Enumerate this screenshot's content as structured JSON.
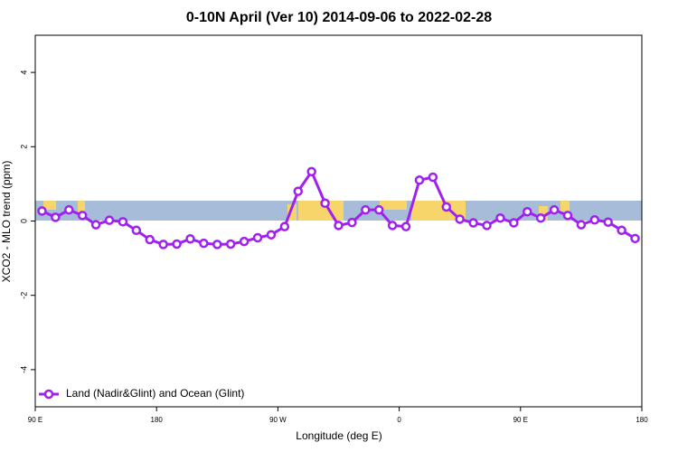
{
  "chart_data": {
    "type": "line",
    "title": "0-10N April (Ver 10)   2014-09-06 to 2022-02-28",
    "xlabel": "Longitude (deg E)",
    "ylabel": "XCO2 - MLO trend (ppm)",
    "xlim": [
      90,
      540
    ],
    "xticks": [
      {
        "value": 90,
        "label": "90 E"
      },
      180,
      {
        "value": 270,
        "label": "90 W"
      },
      {
        "value": 360,
        "label": "0"
      },
      {
        "value": 450,
        "label": "90 E"
      },
      {
        "value": 540,
        "label": "180"
      }
    ],
    "ylim": [
      -5,
      5
    ],
    "yticks": [
      -4,
      -2,
      0,
      2,
      4
    ],
    "legend": "bottom-left",
    "x": [
      95,
      105,
      115,
      125,
      135,
      145,
      155,
      165,
      175,
      185,
      195,
      205,
      215,
      225,
      235,
      245,
      255,
      265,
      275,
      285,
      295,
      305,
      315,
      325,
      335,
      345,
      355,
      365,
      375,
      385,
      395,
      405,
      415,
      425,
      435,
      445,
      455,
      465,
      475,
      485,
      495,
      505,
      515,
      525,
      535
    ],
    "series": [
      {
        "name": "Land (Nadir&Glint) and Ocean (Glint)",
        "color": "#a020f0",
        "values": [
          0.27,
          0.1,
          0.3,
          0.15,
          -0.1,
          0.02,
          -0.02,
          -0.25,
          -0.5,
          -0.63,
          -0.62,
          -0.48,
          -0.6,
          -0.63,
          -0.62,
          -0.55,
          -0.45,
          -0.37,
          -0.15,
          0.8,
          1.33,
          0.48,
          -0.12,
          -0.04,
          0.3,
          0.3,
          -0.12,
          -0.15,
          1.1,
          1.18,
          0.38,
          0.05,
          -0.05,
          -0.12,
          0.08,
          -0.05,
          0.25,
          0.08,
          0.3,
          0.15,
          -0.1,
          0.03,
          -0.03,
          -0.25,
          -0.47
        ]
      }
    ]
  }
}
